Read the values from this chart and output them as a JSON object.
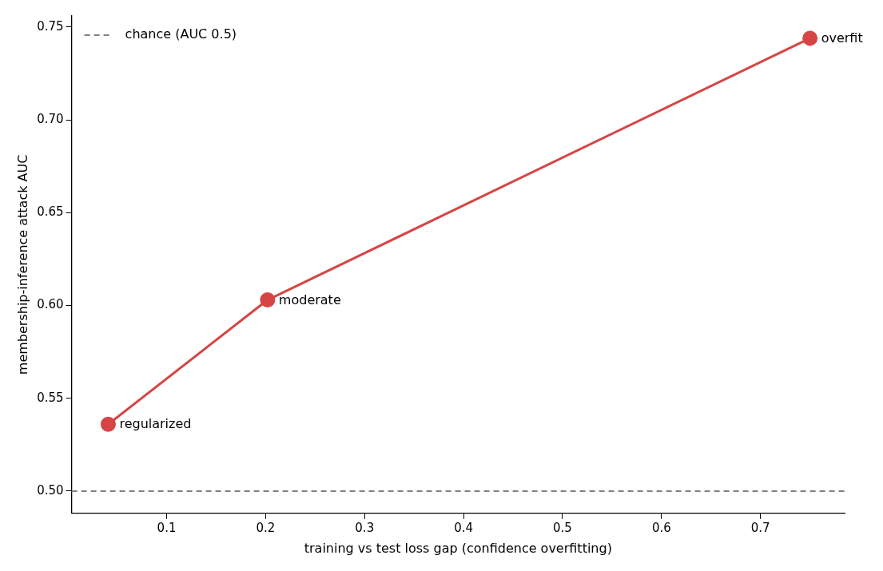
{
  "chart_data": {
    "type": "line",
    "xlabel": "training vs test loss gap (confidence overfitting)",
    "ylabel": "membership-inference attack AUC",
    "x": [
      0.041,
      0.202,
      0.75
    ],
    "series": [
      {
        "color": "#d64545",
        "values": [
          0.536,
          0.603,
          0.744
        ]
      }
    ],
    "marker": "circle",
    "line_style": "solid",
    "xlim": [
      0.004,
      0.785
    ],
    "xticks": [
      0.1,
      0.2,
      0.3,
      0.4,
      0.5,
      0.6,
      0.7
    ],
    "ylim": [
      0.488,
      0.756
    ],
    "yticks": [
      {
        "value": 0.5,
        "label": "0.50"
      },
      {
        "value": 0.55,
        "label": "0.55"
      },
      {
        "value": 0.6,
        "label": "0.60"
      },
      {
        "value": 0.65,
        "label": "0.65"
      },
      {
        "value": 0.7,
        "label": "0.70"
      },
      {
        "value": 0.75,
        "label": "0.75"
      }
    ],
    "ref_lines": [
      {
        "axis": "y",
        "value": 0.5,
        "label": "chance (AUC 0.5)",
        "color": "#808080",
        "line_style": "dashed"
      }
    ],
    "annotations": [
      {
        "text": "regularized",
        "x": 0.041,
        "y": 0.536
      },
      {
        "text": "moderate",
        "x": 0.202,
        "y": 0.603
      },
      {
        "text": "overfit",
        "x": 0.75,
        "y": 0.744
      }
    ],
    "legend": "top left",
    "grid": false
  }
}
